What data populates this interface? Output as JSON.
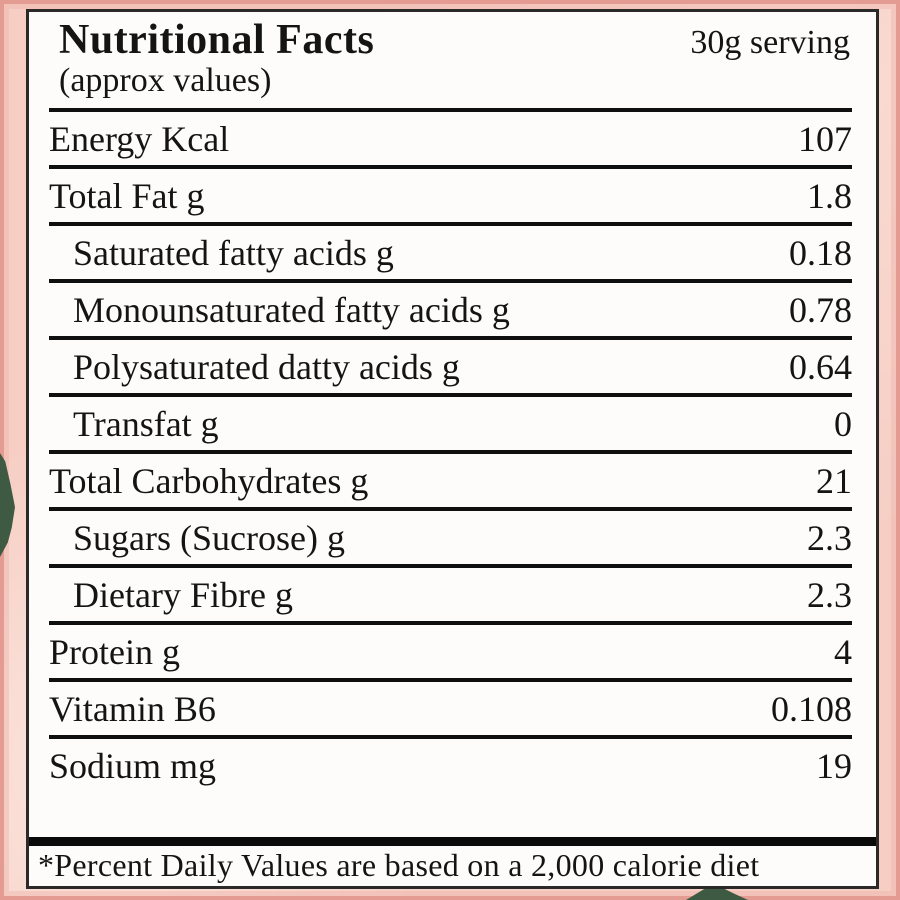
{
  "label": {
    "title": "Nutritional Facts",
    "subtitle": "(approx values)",
    "serving": "30g serving",
    "rows": [
      {
        "name": "Energy Kcal",
        "value": "107",
        "indent": false
      },
      {
        "name": "Total Fat g",
        "value": "1.8",
        "indent": false
      },
      {
        "name": "Saturated fatty acids g",
        "value": "0.18",
        "indent": true
      },
      {
        "name": "Monounsaturated fatty acids g",
        "value": "0.78",
        "indent": true
      },
      {
        "name": "Polysaturated datty acids g",
        "value": "0.64",
        "indent": true
      },
      {
        "name": "Transfat g",
        "value": "0",
        "indent": true
      },
      {
        "name": "Total Carbohydrates g",
        "value": "21",
        "indent": false
      },
      {
        "name": "Sugars (Sucrose) g",
        "value": "2.3",
        "indent": true
      },
      {
        "name": "Dietary Fibre g",
        "value": "2.3",
        "indent": true
      },
      {
        "name": "Protein g",
        "value": "4",
        "indent": false
      },
      {
        "name": "Vitamin B6",
        "value": "0.108",
        "indent": false
      },
      {
        "name": "Sodium mg",
        "value": "19",
        "indent": false
      }
    ],
    "footnote": "*Percent Daily Values are based on a 2,000 calorie diet"
  },
  "colors": {
    "background_pink": "#f6cec4",
    "frame_pink": "#e49b91",
    "leaf_green": "#3e5a43",
    "panel_background": "#fdfcfb",
    "rule_black": "#0f0f0f",
    "text": "#141413"
  }
}
